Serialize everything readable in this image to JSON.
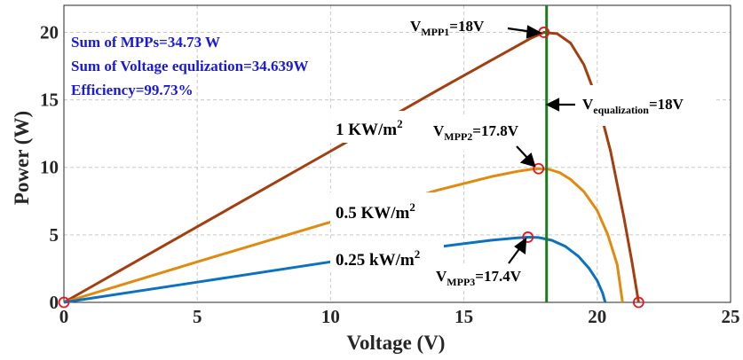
{
  "chart_data": {
    "type": "line",
    "title": "",
    "xlabel": "Voltage (V)",
    "ylabel": "Power (W)",
    "xlim": [
      0,
      25
    ],
    "ylim": [
      0,
      22
    ],
    "xticks": [
      0,
      5,
      10,
      15,
      20,
      25
    ],
    "yticks": [
      0,
      5,
      10,
      15,
      20
    ],
    "grid": true,
    "series": [
      {
        "name": "1 KW/m²",
        "color": "#a33e0e",
        "x": [
          0,
          5,
          10,
          14,
          16,
          17,
          17.5,
          18,
          18.5,
          19,
          19.5,
          20,
          20.5,
          21,
          21.3,
          21.55
        ],
        "y": [
          0,
          5.6,
          11.2,
          15.7,
          17.9,
          19.0,
          19.55,
          20.0,
          19.9,
          19.2,
          17.6,
          15.0,
          11.2,
          6.3,
          3.0,
          0
        ]
      },
      {
        "name": "0.5 KW/m²",
        "color": "#e08a10",
        "x": [
          0,
          5,
          10,
          14,
          16,
          17,
          17.5,
          17.8,
          18.2,
          18.6,
          19,
          19.5,
          20,
          20.4,
          20.75,
          20.95
        ],
        "y": [
          0,
          3.0,
          5.95,
          8.3,
          9.3,
          9.7,
          9.85,
          9.9,
          9.85,
          9.6,
          9.1,
          8.2,
          6.8,
          5.0,
          2.8,
          0
        ]
      },
      {
        "name": "0.25 kW/m²",
        "color": "#0c72bf",
        "x": [
          0,
          5,
          10,
          14,
          16,
          17,
          17.4,
          17.8,
          18.3,
          18.8,
          19.3,
          19.7,
          20.0,
          20.2,
          20.3
        ],
        "y": [
          0,
          1.5,
          3.0,
          4.1,
          4.6,
          4.78,
          4.83,
          4.8,
          4.6,
          4.15,
          3.4,
          2.5,
          1.6,
          0.7,
          0
        ]
      }
    ],
    "markers": [
      {
        "x": 0,
        "y": 0
      },
      {
        "x": 17.8,
        "y": 9.9
      },
      {
        "x": 18,
        "y": 20
      },
      {
        "x": 17.4,
        "y": 4.83
      },
      {
        "x": 21.55,
        "y": 0
      }
    ],
    "vline": {
      "x": 18.1,
      "color": "#1e7a1e"
    },
    "summary": [
      "Sum of MPPs=34.73 W",
      "Sum of Voltage equlization=34.639W",
      "Efficiency=99.73%"
    ],
    "annotations": {
      "mpp1_main": "V",
      "mpp1_sub": "MPP1",
      "mpp1_val": "=18V",
      "mpp2_main": "V",
      "mpp2_sub": "MPP2",
      "mpp2_val": "=17.8V",
      "mpp3_main": "V",
      "mpp3_sub": "MPP3",
      "mpp3_val": "=17.4V",
      "veq_main": "V",
      "veq_sub": "equalization",
      "veq_val": "=18V",
      "irr1_text": "1 KW/m",
      "irr1_sup": "2",
      "irr2_text": "0.5 KW/m",
      "irr2_sup": "2",
      "irr3_text": "0.25 kW/m",
      "irr3_sup": "2"
    }
  }
}
